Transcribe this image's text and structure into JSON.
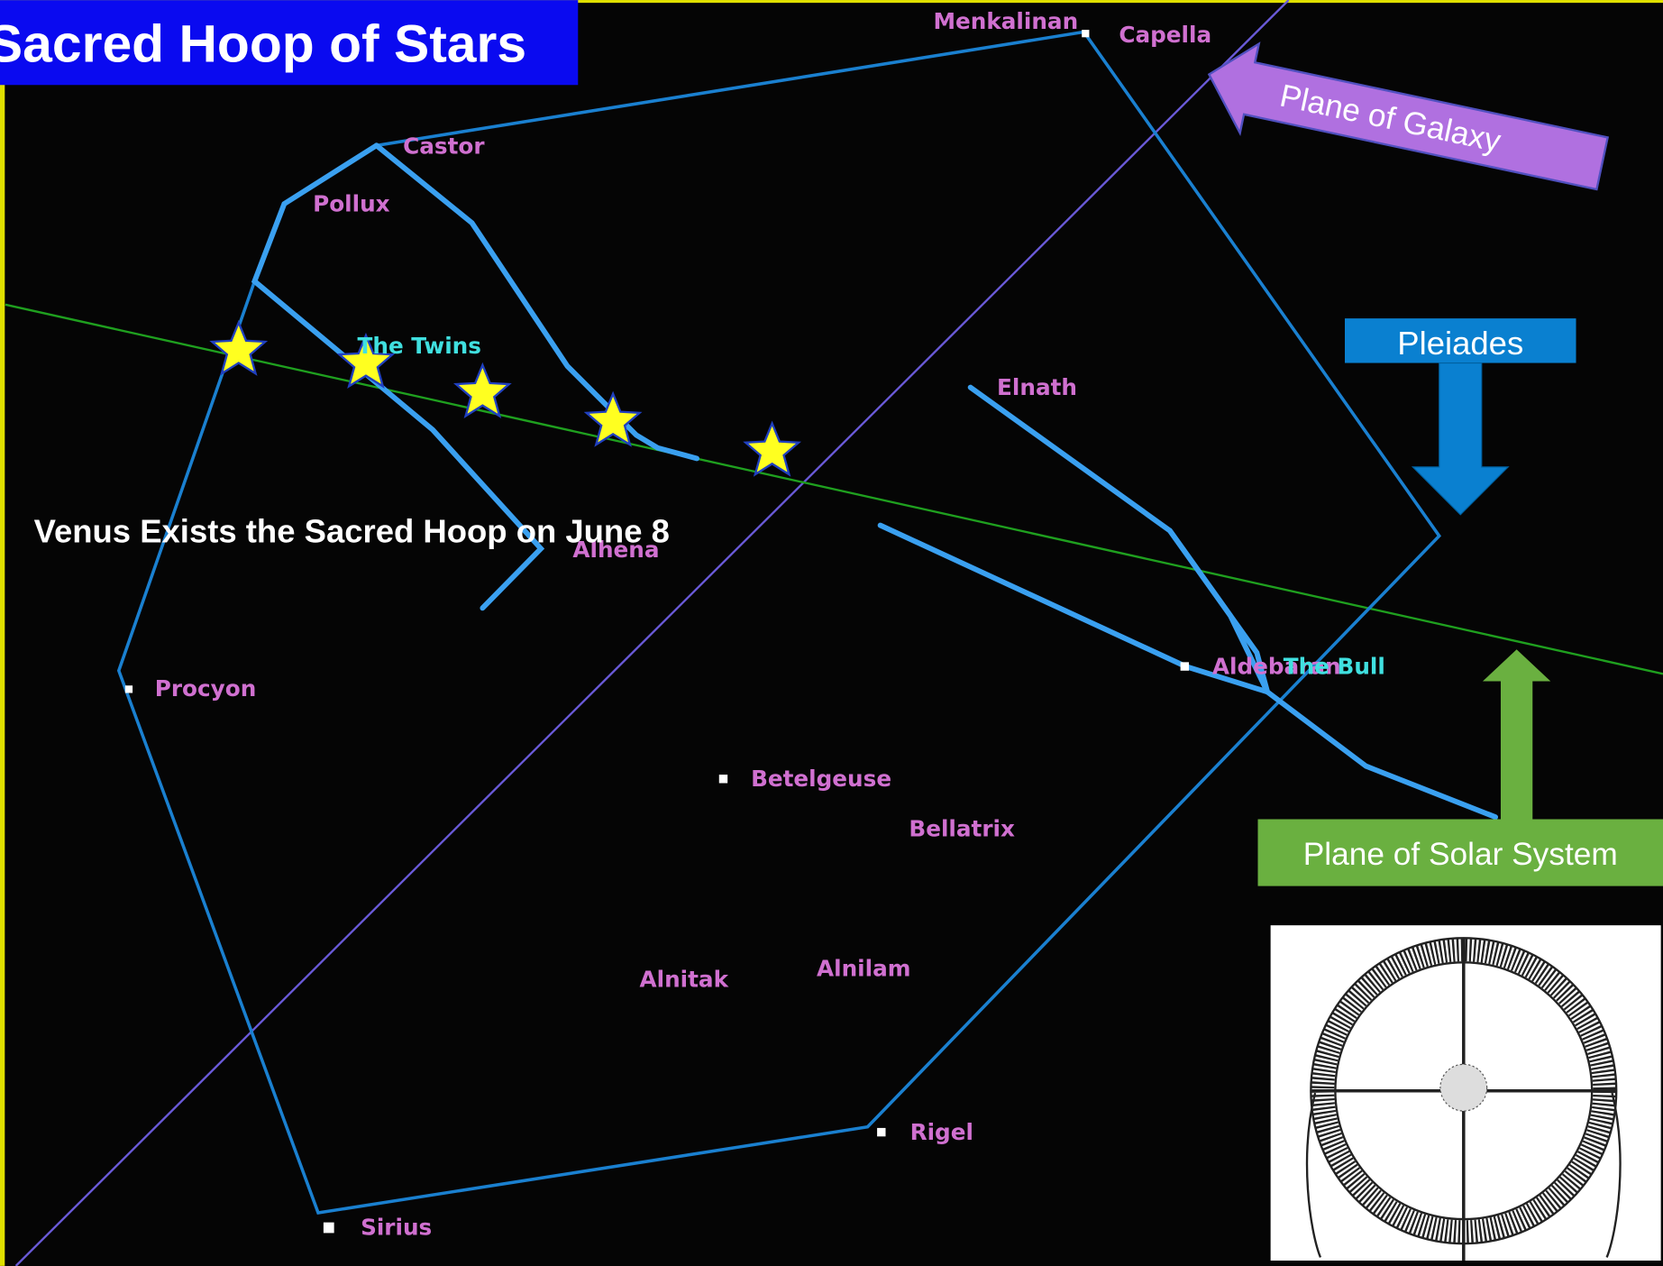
{
  "header": {
    "title": "Sacred Hoop of Stars"
  },
  "annotations": {
    "galaxy": "Plane of Galaxy",
    "pleiades": "Pleiades",
    "solar": "Plane of Solar System",
    "venus": "Venus Exists the Sacred Hoop on June 8"
  },
  "constellations": [
    "The Twins",
    "The Bull"
  ],
  "stars": [
    "Menkalinan",
    "Capella",
    "Castor",
    "Pollux",
    "Elnath",
    "Alhena",
    "Procyon",
    "Aldebaran",
    "Betelgeuse",
    "Bellatrix",
    "Alnitak",
    "Alnilam",
    "Rigel",
    "Sirius"
  ]
}
